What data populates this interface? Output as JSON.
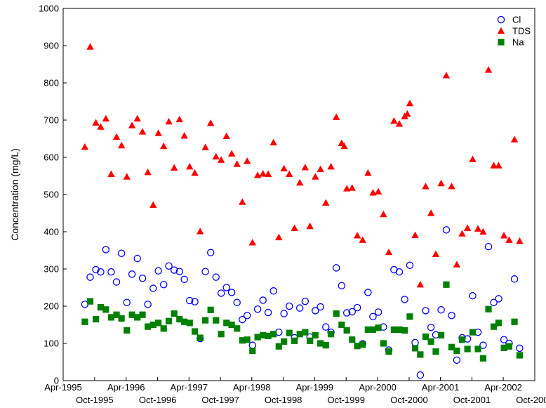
{
  "chart_data": {
    "type": "scatter",
    "ylabel": "Concentration (mg/L)",
    "ylim": [
      0,
      1000
    ],
    "yticks": [
      0,
      100,
      200,
      300,
      400,
      500,
      600,
      700,
      800,
      900,
      1000
    ],
    "xlim": [
      "1995-04-01",
      "2002-10-01"
    ],
    "xticks_top": [
      "Apr-1995",
      "Apr-1996",
      "Apr-1997",
      "Apr-1998",
      "Apr-1999",
      "Apr-2000",
      "Apr-2001",
      "Apr-2002"
    ],
    "xticks_bottom": [
      "Oct-1995",
      "Oct-1996",
      "Oct-1997",
      "Oct-1998",
      "Oct-1999",
      "Oct-2000",
      "Oct-2001",
      "Oct-2002"
    ],
    "legend_position": "top-right",
    "grid": false,
    "series": [
      {
        "name": "Cl",
        "marker": "circle-open",
        "color": "#0000ff",
        "points": [
          [
            "1995-08-05",
            205
          ],
          [
            "1995-09-05",
            278
          ],
          [
            "1995-10-08",
            298
          ],
          [
            "1995-11-05",
            292
          ],
          [
            "1995-12-05",
            352
          ],
          [
            "1996-01-05",
            292
          ],
          [
            "1996-02-05",
            265
          ],
          [
            "1996-03-05",
            342
          ],
          [
            "1996-04-05",
            210
          ],
          [
            "1996-05-05",
            286
          ],
          [
            "1996-06-05",
            328
          ],
          [
            "1996-07-05",
            275
          ],
          [
            "1996-08-05",
            205
          ],
          [
            "1996-09-05",
            248
          ],
          [
            "1996-10-05",
            295
          ],
          [
            "1996-11-05",
            258
          ],
          [
            "1996-12-05",
            308
          ],
          [
            "1997-01-05",
            297
          ],
          [
            "1997-02-05",
            293
          ],
          [
            "1997-03-05",
            272
          ],
          [
            "1997-04-05",
            215
          ],
          [
            "1997-05-05",
            212
          ],
          [
            "1997-06-05",
            113
          ],
          [
            "1997-07-05",
            293
          ],
          [
            "1997-08-05",
            344
          ],
          [
            "1997-09-05",
            278
          ],
          [
            "1997-10-05",
            235
          ],
          [
            "1997-11-05",
            250
          ],
          [
            "1997-12-05",
            237
          ],
          [
            "1998-01-05",
            210
          ],
          [
            "1998-02-05",
            164
          ],
          [
            "1998-03-05",
            175
          ],
          [
            "1998-04-05",
            95
          ],
          [
            "1998-05-05",
            192
          ],
          [
            "1998-06-05",
            216
          ],
          [
            "1998-07-05",
            183
          ],
          [
            "1998-08-05",
            241
          ],
          [
            "1998-09-05",
            130
          ],
          [
            "1998-10-05",
            180
          ],
          [
            "1998-11-05",
            200
          ],
          [
            "1998-12-05",
            115
          ],
          [
            "1999-01-05",
            195
          ],
          [
            "1999-02-05",
            213
          ],
          [
            "1999-03-05",
            117
          ],
          [
            "1999-04-05",
            188
          ],
          [
            "1999-05-05",
            198
          ],
          [
            "1999-06-05",
            144
          ],
          [
            "1999-07-05",
            130
          ],
          [
            "1999-08-05",
            303
          ],
          [
            "1999-09-05",
            255
          ],
          [
            "1999-10-05",
            182
          ],
          [
            "1999-11-05",
            185
          ],
          [
            "1999-12-05",
            196
          ],
          [
            "2000-01-05",
            99
          ],
          [
            "2000-02-05",
            237
          ],
          [
            "2000-03-05",
            172
          ],
          [
            "2000-04-05",
            184
          ],
          [
            "2000-05-05",
            144
          ],
          [
            "2000-06-05",
            82
          ],
          [
            "2000-07-05",
            298
          ],
          [
            "2000-08-05",
            292
          ],
          [
            "2000-09-05",
            218
          ],
          [
            "2000-10-05",
            310
          ],
          [
            "2000-11-05",
            102
          ],
          [
            "2000-12-05",
            15
          ],
          [
            "2001-01-05",
            188
          ],
          [
            "2001-02-05",
            143
          ],
          [
            "2001-03-05",
            123
          ],
          [
            "2001-04-05",
            190
          ],
          [
            "2001-05-05",
            405
          ],
          [
            "2001-06-05",
            175
          ],
          [
            "2001-07-05",
            55
          ],
          [
            "2001-08-05",
            115
          ],
          [
            "2001-09-05",
            112
          ],
          [
            "2001-10-05",
            228
          ],
          [
            "2001-11-05",
            130
          ],
          [
            "2001-12-05",
            95
          ],
          [
            "2002-01-05",
            360
          ],
          [
            "2002-02-05",
            210
          ],
          [
            "2002-03-05",
            220
          ],
          [
            "2002-04-05",
            110
          ],
          [
            "2002-05-05",
            100
          ],
          [
            "2002-06-05",
            273
          ],
          [
            "2002-07-05",
            87
          ]
        ]
      },
      {
        "name": "TDS",
        "marker": "triangle-filled",
        "color": "#ff0000",
        "points": [
          [
            "1995-08-05",
            628
          ],
          [
            "1995-09-05",
            897
          ],
          [
            "1995-10-08",
            693
          ],
          [
            "1995-11-05",
            682
          ],
          [
            "1995-12-05",
            704
          ],
          [
            "1996-01-05",
            555
          ],
          [
            "1996-02-05",
            655
          ],
          [
            "1996-03-05",
            632
          ],
          [
            "1996-04-05",
            548
          ],
          [
            "1996-05-05",
            686
          ],
          [
            "1996-06-05",
            704
          ],
          [
            "1996-07-05",
            669
          ],
          [
            "1996-08-05",
            560
          ],
          [
            "1996-09-05",
            472
          ],
          [
            "1996-10-05",
            665
          ],
          [
            "1996-11-05",
            630
          ],
          [
            "1996-12-05",
            696
          ],
          [
            "1997-01-05",
            572
          ],
          [
            "1997-02-05",
            702
          ],
          [
            "1997-03-05",
            658
          ],
          [
            "1997-04-05",
            575
          ],
          [
            "1997-05-05",
            558
          ],
          [
            "1997-06-05",
            401
          ],
          [
            "1997-07-05",
            627
          ],
          [
            "1997-08-05",
            692
          ],
          [
            "1997-09-05",
            602
          ],
          [
            "1997-10-05",
            593
          ],
          [
            "1997-11-05",
            657
          ],
          [
            "1997-12-05",
            610
          ],
          [
            "1998-01-05",
            582
          ],
          [
            "1998-02-05",
            480
          ],
          [
            "1998-03-05",
            590
          ],
          [
            "1998-04-05",
            371
          ],
          [
            "1998-05-05",
            552
          ],
          [
            "1998-06-05",
            556
          ],
          [
            "1998-07-05",
            555
          ],
          [
            "1998-08-05",
            640
          ],
          [
            "1998-09-05",
            385
          ],
          [
            "1998-10-05",
            570
          ],
          [
            "1998-11-05",
            555
          ],
          [
            "1998-12-05",
            410
          ],
          [
            "1999-01-05",
            532
          ],
          [
            "1999-02-05",
            573
          ],
          [
            "1999-03-05",
            415
          ],
          [
            "1999-04-05",
            548
          ],
          [
            "1999-05-05",
            568
          ],
          [
            "1999-06-05",
            478
          ],
          [
            "1999-07-05",
            575
          ],
          [
            "1999-08-05",
            708
          ],
          [
            "1999-09-05",
            638
          ],
          [
            "1999-09-20",
            630
          ],
          [
            "1999-10-05",
            516
          ],
          [
            "1999-11-05",
            518
          ],
          [
            "1999-12-05",
            390
          ],
          [
            "2000-01-05",
            378
          ],
          [
            "2000-02-05",
            558
          ],
          [
            "2000-03-05",
            505
          ],
          [
            "2000-04-05",
            508
          ],
          [
            "2000-05-05",
            447
          ],
          [
            "2000-06-05",
            345
          ],
          [
            "2000-07-05",
            698
          ],
          [
            "2000-08-05",
            690
          ],
          [
            "2000-09-05",
            710
          ],
          [
            "2000-09-20",
            717
          ],
          [
            "2000-10-05",
            745
          ],
          [
            "2000-11-05",
            391
          ],
          [
            "2000-12-05",
            258
          ],
          [
            "2001-01-05",
            522
          ],
          [
            "2001-02-05",
            450
          ],
          [
            "2001-03-05",
            340
          ],
          [
            "2001-04-05",
            530
          ],
          [
            "2001-05-05",
            820
          ],
          [
            "2001-06-05",
            522
          ],
          [
            "2001-07-05",
            312
          ],
          [
            "2001-08-05",
            395
          ],
          [
            "2001-09-05",
            410
          ],
          [
            "2001-10-05",
            595
          ],
          [
            "2001-11-05",
            408
          ],
          [
            "2001-12-05",
            400
          ],
          [
            "2002-01-05",
            835
          ],
          [
            "2002-02-05",
            578
          ],
          [
            "2002-03-05",
            578
          ],
          [
            "2002-04-05",
            390
          ],
          [
            "2002-05-05",
            378
          ],
          [
            "2002-06-05",
            648
          ],
          [
            "2002-07-05",
            375
          ]
        ]
      },
      {
        "name": "Na",
        "marker": "square-filled",
        "color": "#008000",
        "points": [
          [
            "1995-08-05",
            158
          ],
          [
            "1995-09-05",
            213
          ],
          [
            "1995-10-08",
            165
          ],
          [
            "1995-11-05",
            197
          ],
          [
            "1995-12-05",
            191
          ],
          [
            "1996-01-05",
            170
          ],
          [
            "1996-02-05",
            177
          ],
          [
            "1996-03-05",
            167
          ],
          [
            "1996-04-05",
            135
          ],
          [
            "1996-05-05",
            177
          ],
          [
            "1996-06-05",
            170
          ],
          [
            "1996-07-05",
            177
          ],
          [
            "1996-08-05",
            145
          ],
          [
            "1996-09-05",
            150
          ],
          [
            "1996-10-05",
            155
          ],
          [
            "1996-11-05",
            140
          ],
          [
            "1996-12-05",
            160
          ],
          [
            "1997-01-05",
            180
          ],
          [
            "1997-02-05",
            165
          ],
          [
            "1997-03-05",
            158
          ],
          [
            "1997-04-05",
            155
          ],
          [
            "1997-05-05",
            132
          ],
          [
            "1997-06-05",
            115
          ],
          [
            "1997-07-05",
            162
          ],
          [
            "1997-08-05",
            190
          ],
          [
            "1997-09-05",
            162
          ],
          [
            "1997-10-05",
            125
          ],
          [
            "1997-11-05",
            155
          ],
          [
            "1997-12-05",
            150
          ],
          [
            "1998-01-05",
            140
          ],
          [
            "1998-02-05",
            108
          ],
          [
            "1998-03-05",
            110
          ],
          [
            "1998-04-05",
            80
          ],
          [
            "1998-05-05",
            117
          ],
          [
            "1998-06-05",
            122
          ],
          [
            "1998-07-05",
            120
          ],
          [
            "1998-08-05",
            125
          ],
          [
            "1998-09-05",
            92
          ],
          [
            "1998-10-05",
            105
          ],
          [
            "1998-11-05",
            128
          ],
          [
            "1998-12-05",
            107
          ],
          [
            "1999-01-05",
            125
          ],
          [
            "1999-02-05",
            130
          ],
          [
            "1999-03-05",
            107
          ],
          [
            "1999-04-05",
            122
          ],
          [
            "1999-05-05",
            100
          ],
          [
            "1999-06-05",
            95
          ],
          [
            "1999-07-05",
            125
          ],
          [
            "1999-08-05",
            180
          ],
          [
            "1999-09-05",
            150
          ],
          [
            "1999-10-05",
            135
          ],
          [
            "1999-11-05",
            110
          ],
          [
            "1999-12-05",
            93
          ],
          [
            "2000-01-05",
            97
          ],
          [
            "2000-02-05",
            137
          ],
          [
            "2000-03-05",
            137
          ],
          [
            "2000-04-05",
            142
          ],
          [
            "2000-05-05",
            100
          ],
          [
            "2000-06-05",
            78
          ],
          [
            "2000-07-05",
            137
          ],
          [
            "2000-08-05",
            137
          ],
          [
            "2000-09-05",
            135
          ],
          [
            "2000-10-05",
            172
          ],
          [
            "2000-11-05",
            87
          ],
          [
            "2000-12-05",
            70
          ],
          [
            "2001-01-05",
            118
          ],
          [
            "2001-02-05",
            105
          ],
          [
            "2001-03-05",
            78
          ],
          [
            "2001-04-05",
            122
          ],
          [
            "2001-05-05",
            258
          ],
          [
            "2001-06-05",
            90
          ],
          [
            "2001-07-05",
            80
          ],
          [
            "2001-08-05",
            110
          ],
          [
            "2001-09-05",
            85
          ],
          [
            "2001-10-05",
            130
          ],
          [
            "2001-11-05",
            85
          ],
          [
            "2001-12-05",
            60
          ],
          [
            "2002-01-05",
            192
          ],
          [
            "2002-02-05",
            145
          ],
          [
            "2002-03-05",
            155
          ],
          [
            "2002-04-05",
            88
          ],
          [
            "2002-05-05",
            92
          ],
          [
            "2002-06-05",
            158
          ],
          [
            "2002-07-05",
            68
          ]
        ]
      }
    ]
  }
}
